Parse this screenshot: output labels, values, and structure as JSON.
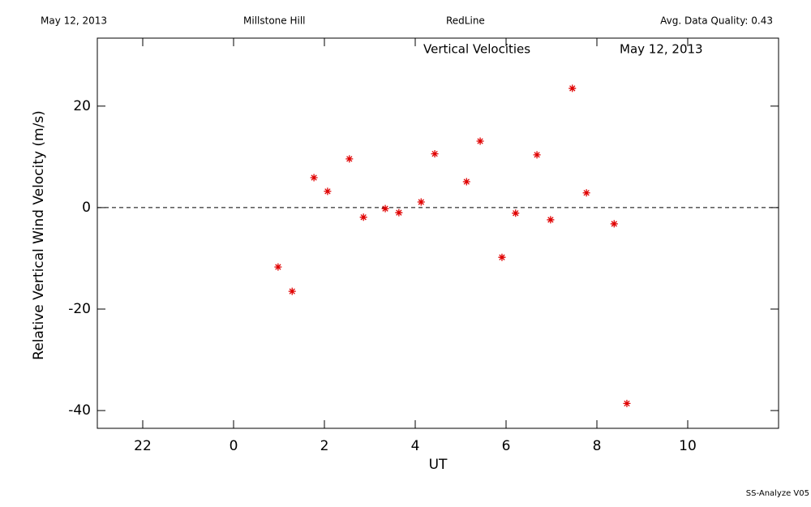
{
  "chart_data": {
    "type": "scatter",
    "header": {
      "date": "May 12, 2013",
      "site": "Millstone Hill",
      "filter": "RedLine",
      "quality": "Avg. Data Quality: 0.43"
    },
    "title": "Vertical Velocities",
    "subtitle": "May 12, 2013",
    "x_label": "UT",
    "y_label": "Relative Vertical Wind Velocity (m/s)",
    "footer": "SS-Analyze V05",
    "xlim": [
      -3,
      12
    ],
    "ylim": [
      -43.5,
      33.4
    ],
    "xticks": [
      {
        "value": -2,
        "label": "22"
      },
      0,
      2,
      4,
      6,
      8,
      10
    ],
    "yticks": [
      -40,
      -20,
      0,
      20
    ],
    "reference_line": 0,
    "series": [
      {
        "color": "#e00000",
        "x": [
          0.98,
          1.29,
          1.77,
          2.07,
          2.55,
          2.86,
          3.34,
          3.64,
          4.13,
          4.43,
          5.13,
          5.43,
          5.91,
          6.21,
          6.68,
          6.98,
          7.46,
          7.77,
          8.38,
          8.66
        ],
        "values": [
          -11.7,
          -16.5,
          5.9,
          3.2,
          9.6,
          -1.9,
          -0.2,
          -1.0,
          1.1,
          10.6,
          5.1,
          13.1,
          -9.8,
          -1.1,
          10.4,
          -2.4,
          23.5,
          2.9,
          -3.2,
          -38.6
        ]
      }
    ]
  }
}
